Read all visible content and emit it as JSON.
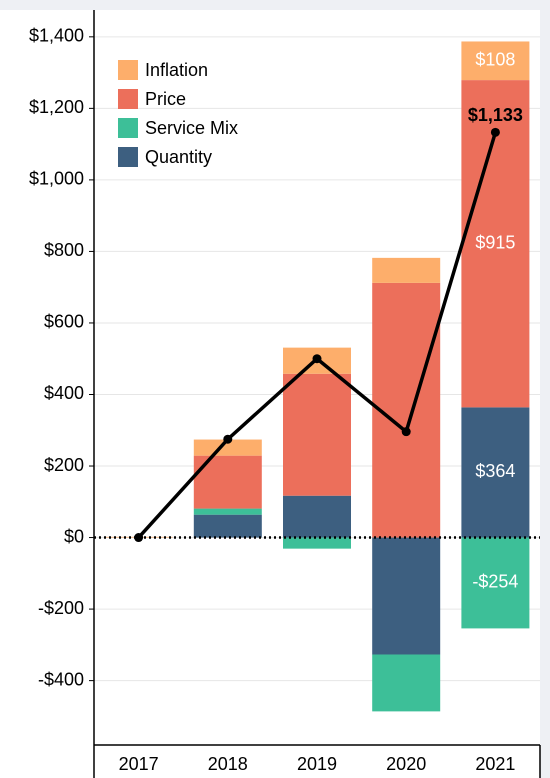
{
  "chart_data": {
    "type": "bar",
    "stacked": true,
    "categories": [
      "2017",
      "2018",
      "2019",
      "2020",
      "2021"
    ],
    "series": [
      {
        "name": "Quantity",
        "color": "#3d5f80",
        "values": [
          0,
          64,
          117,
          -327,
          364
        ],
        "value_labels": [
          null,
          null,
          null,
          null,
          "$364"
        ]
      },
      {
        "name": "Service Mix",
        "color": "#3dbf98",
        "values": [
          0,
          17,
          -31,
          -159,
          -254
        ],
        "value_labels": [
          null,
          null,
          null,
          null,
          "-$254"
        ]
      },
      {
        "name": "Price",
        "color": "#ec6f5b",
        "values": [
          0,
          148,
          341,
          712,
          915
        ],
        "value_labels": [
          null,
          null,
          null,
          null,
          "$915"
        ]
      },
      {
        "name": "Inflation",
        "color": "#fdae6b",
        "values": [
          2,
          45,
          73,
          70,
          108
        ],
        "value_labels": [
          null,
          null,
          null,
          null,
          "$108"
        ]
      }
    ],
    "total": {
      "color": "#000000",
      "values": [
        0,
        275,
        500,
        296,
        1133
      ],
      "value_labels": [
        null,
        null,
        null,
        null,
        "$1,133"
      ]
    },
    "ylim": [
      -580,
      1475
    ],
    "yticks": [
      {
        "value": -400,
        "label": "-$400"
      },
      {
        "value": -200,
        "label": "-$200"
      },
      {
        "value": 0,
        "label": "$0"
      },
      {
        "value": 200,
        "label": "$200"
      },
      {
        "value": 400,
        "label": "$400"
      },
      {
        "value": 600,
        "label": "$600"
      },
      {
        "value": 800,
        "label": "$800"
      },
      {
        "value": 1000,
        "label": "$1,000"
      },
      {
        "value": 1200,
        "label": "$1,200"
      },
      {
        "value": 1400,
        "label": "$1,400"
      }
    ],
    "grid": true,
    "legend": "top-left"
  }
}
